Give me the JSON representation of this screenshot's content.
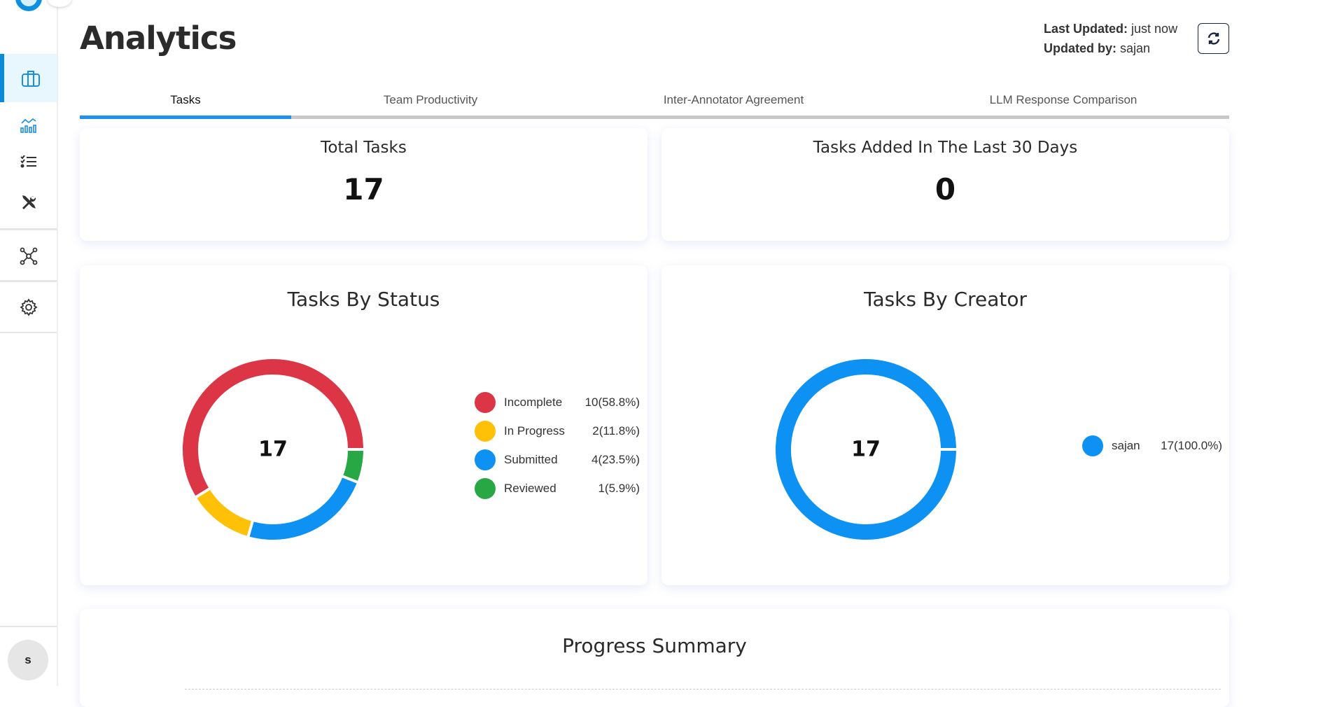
{
  "sidebar": {
    "items": [
      {
        "icon": "briefcase-icon",
        "active": true
      },
      {
        "icon": "analytics-chart-icon"
      },
      {
        "icon": "checklist-icon"
      },
      {
        "icon": "tools-icon"
      },
      {
        "icon": "network-icon"
      },
      {
        "icon": "settings-icon"
      }
    ],
    "avatar": "s"
  },
  "header": {
    "title": "Analytics",
    "last_updated_label": "Last Updated:",
    "last_updated_value": "just now",
    "updated_by_label": "Updated by:",
    "updated_by_value": "sajan",
    "refresh_icon": "refresh-icon"
  },
  "tabs": [
    {
      "label": "Tasks",
      "active": true
    },
    {
      "label": "Team Productivity"
    },
    {
      "label": "Inter-Annotator Agreement"
    },
    {
      "label": "LLM Response Comparison"
    }
  ],
  "cards": {
    "total_tasks": {
      "title": "Total Tasks",
      "value": "17"
    },
    "last30": {
      "title": "Tasks Added In The Last 30 Days",
      "value": "0"
    },
    "progress_summary": {
      "title": "Progress Summary"
    }
  },
  "chart_data": [
    {
      "type": "pie",
      "variant": "donut",
      "title": "Tasks By Status",
      "center_label": "17",
      "categories": [
        "Incomplete",
        "In Progress",
        "Submitted",
        "Reviewed"
      ],
      "values": [
        10,
        2,
        4,
        1
      ],
      "labels": [
        "10(58.8%)",
        "2(11.8%)",
        "4(23.5%)",
        "1(5.9%)"
      ],
      "colors": [
        "#dc3545",
        "#ffc107",
        "#0d91f2",
        "#28a745"
      ],
      "legend": "right"
    },
    {
      "type": "pie",
      "variant": "donut",
      "title": "Tasks By Creator",
      "center_label": "17",
      "categories": [
        "sajan"
      ],
      "values": [
        17
      ],
      "labels": [
        "17(100.0%)"
      ],
      "colors": [
        "#0d91f2"
      ],
      "legend": "right"
    }
  ]
}
